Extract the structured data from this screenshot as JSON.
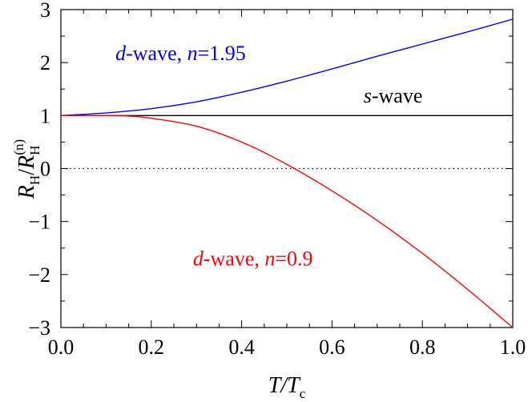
{
  "chart_data": {
    "type": "line",
    "xlim": [
      0.0,
      1.0
    ],
    "ylim": [
      -3,
      3
    ],
    "x_ticks": [
      0.0,
      0.2,
      0.4,
      0.6,
      0.8,
      1.0
    ],
    "x_tick_labels": [
      "0.0",
      "0.2",
      "0.4",
      "0.6",
      "0.8",
      "1.0"
    ],
    "y_ticks": [
      -3,
      -2,
      -1,
      0,
      1,
      2,
      3
    ],
    "y_tick_labels": [
      "−3",
      "−2",
      "−1",
      "0",
      "1",
      "2",
      "3"
    ],
    "xlabel": {
      "main": "T/T",
      "sub": "c"
    },
    "ylabel": {
      "r1": "R",
      "r1_sub": "H",
      "slash": "/",
      "r2": "R",
      "r2_sub": "H",
      "r2_sup": "(n)"
    },
    "grid": false,
    "zero_line": "dotted",
    "series": [
      {
        "name": "d-wave, n=1.95",
        "color": "#0000ff",
        "x": [
          0.0,
          0.1,
          0.2,
          0.3,
          0.4,
          0.5,
          0.6,
          0.7,
          0.8,
          0.9,
          1.0
        ],
        "y": [
          1.0,
          1.05,
          1.13,
          1.26,
          1.44,
          1.65,
          1.88,
          2.12,
          2.35,
          2.58,
          2.82
        ]
      },
      {
        "name": "s-wave",
        "color": "#000000",
        "x": [
          0.0,
          1.0
        ],
        "y": [
          1.0,
          1.0
        ]
      },
      {
        "name": "d-wave, n=0.9",
        "color": "#ff0000",
        "x": [
          0.0,
          0.1,
          0.15,
          0.2,
          0.3,
          0.4,
          0.5,
          0.6,
          0.7,
          0.8,
          0.9,
          1.0
        ],
        "y": [
          1.0,
          1.0,
          0.99,
          0.95,
          0.8,
          0.5,
          0.08,
          -0.42,
          -0.98,
          -1.6,
          -2.28,
          -3.0
        ]
      }
    ],
    "annotations": [
      {
        "name": "d-wave-195",
        "italic_part": "d",
        "text_part": "-wave, ",
        "italic_var": "n",
        "value_part": "=1.95",
        "color": "#0000ff",
        "x": 0.265,
        "y": 2.05
      },
      {
        "name": "s-wave",
        "italic_part": "s",
        "text_part": "-wave",
        "italic_var": "",
        "value_part": "",
        "color": "#000000",
        "x": 0.735,
        "y": 1.25
      },
      {
        "name": "d-wave-09",
        "italic_part": "d",
        "text_part": "-wave, ",
        "italic_var": "n",
        "value_part": "=0.9",
        "color": "#ff0000",
        "x": 0.425,
        "y": -1.83
      }
    ]
  }
}
